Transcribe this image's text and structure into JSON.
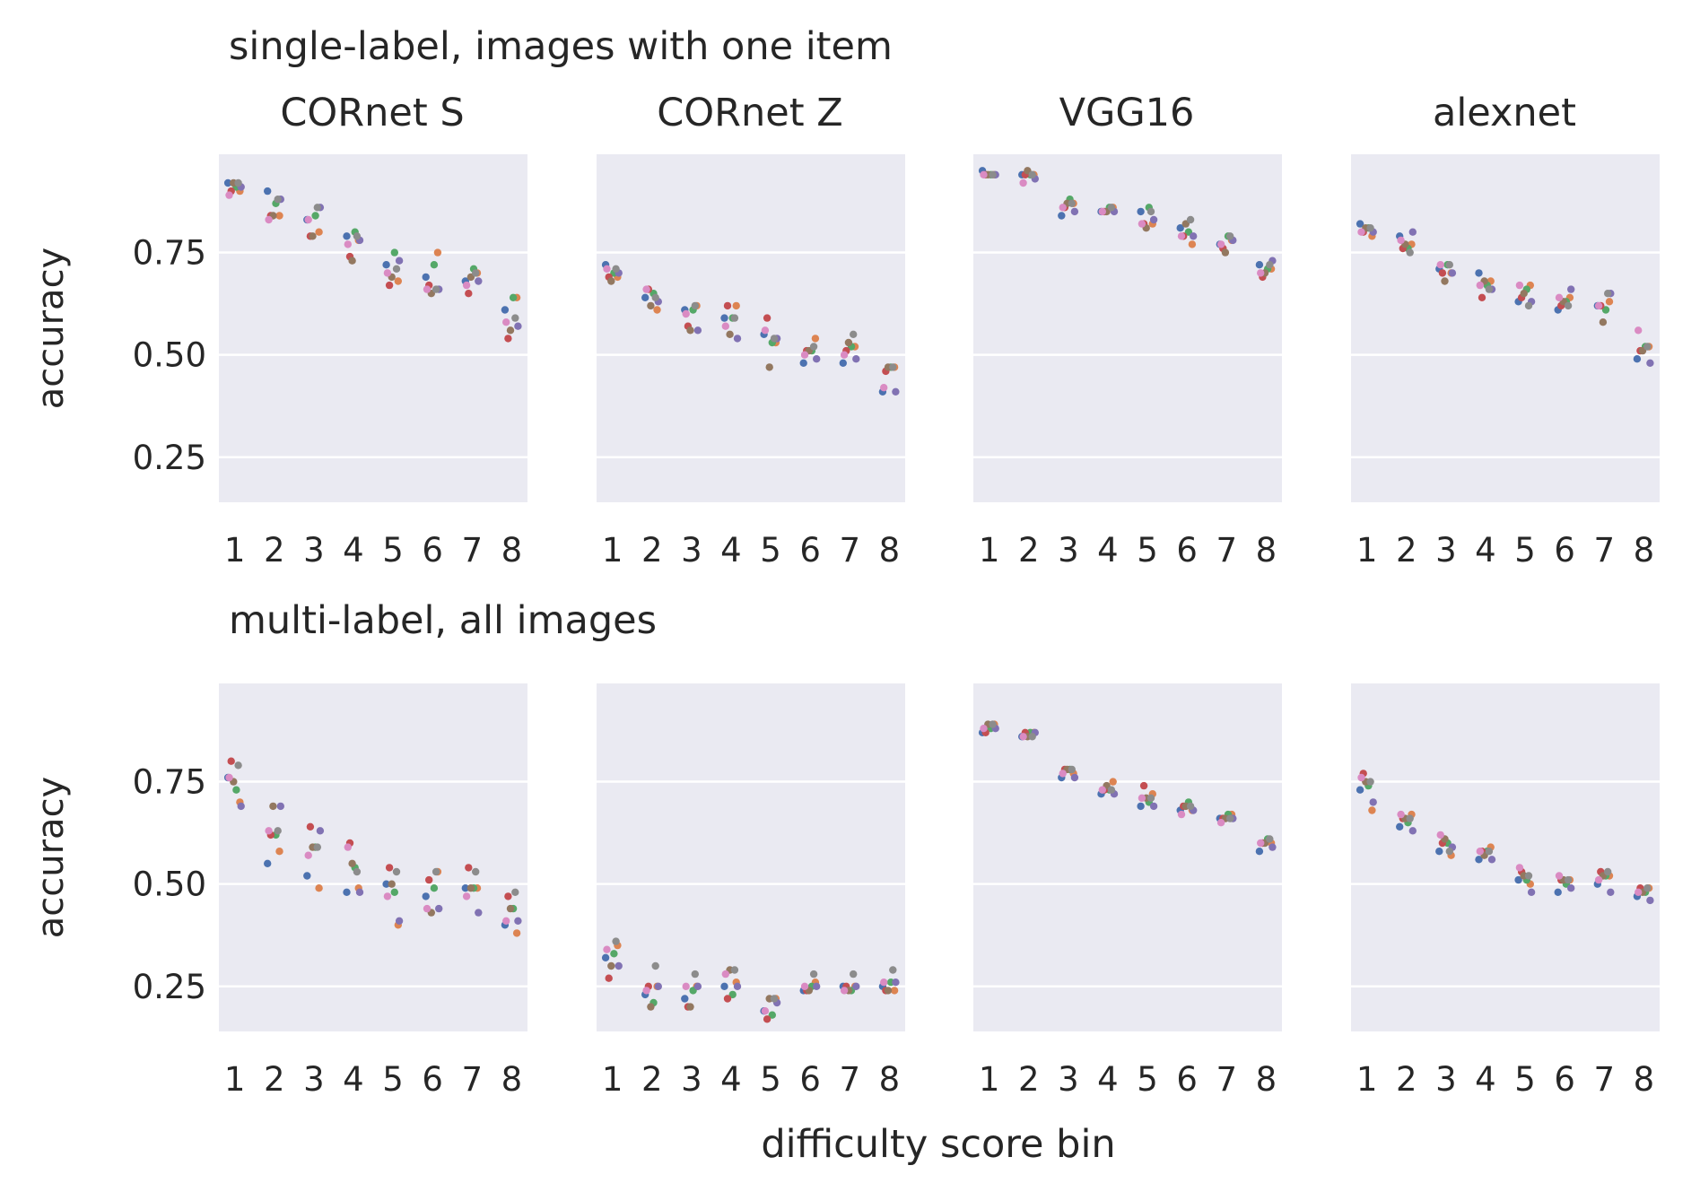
{
  "figure": {
    "xlabel": "difficulty score bin",
    "sections": [
      {
        "title": "single-label, images with one item"
      },
      {
        "title": "multi-label, all images"
      }
    ],
    "column_titles": [
      "CORnet S",
      "CORnet Z",
      "VGG16",
      "alexnet"
    ]
  },
  "chart_data": {
    "type": "scatter",
    "xlabel": "difficulty score bin",
    "ylabel": "accuracy",
    "categories": [
      "1",
      "2",
      "3",
      "4",
      "5",
      "6",
      "7",
      "8"
    ],
    "ylim": [
      0.14,
      0.99
    ],
    "yticks": [
      0.25,
      0.5,
      0.75
    ],
    "ytick_labels": [
      "0.25",
      "0.50",
      "0.75"
    ],
    "grid": true,
    "replicate_colors": [
      "#4c72b0",
      "#dd8452",
      "#55a868",
      "#c44e52",
      "#8172b3",
      "#937860",
      "#da8bc3",
      "#8c8c8c"
    ],
    "panels": [
      {
        "section": "single-label, images with one item",
        "title": "CORnet S",
        "ylabel": "accuracy",
        "points": [
          [
            0.92,
            0.9,
            0.91,
            0.9,
            0.91,
            0.92,
            0.89,
            0.92
          ],
          [
            0.9,
            0.84,
            0.87,
            0.84,
            0.88,
            0.84,
            0.83,
            0.88
          ],
          [
            0.83,
            0.8,
            0.84,
            0.79,
            0.86,
            0.79,
            0.83,
            0.86
          ],
          [
            0.79,
            0.78,
            0.8,
            0.74,
            0.78,
            0.73,
            0.77,
            0.79
          ],
          [
            0.72,
            0.68,
            0.75,
            0.67,
            0.73,
            0.69,
            0.7,
            0.71
          ],
          [
            0.69,
            0.75,
            0.72,
            0.67,
            0.66,
            0.65,
            0.66,
            0.66
          ],
          [
            0.68,
            0.7,
            0.71,
            0.65,
            0.68,
            0.69,
            0.67,
            0.7
          ],
          [
            0.61,
            0.64,
            0.64,
            0.54,
            0.57,
            0.56,
            0.58,
            0.59
          ]
        ]
      },
      {
        "section": "single-label, images with one item",
        "title": "CORnet Z",
        "points": [
          [
            0.72,
            0.69,
            0.7,
            0.69,
            0.7,
            0.68,
            0.71,
            0.71
          ],
          [
            0.64,
            0.61,
            0.65,
            0.66,
            0.63,
            0.62,
            0.66,
            0.64
          ],
          [
            0.61,
            0.62,
            0.61,
            0.57,
            0.56,
            0.56,
            0.6,
            0.62
          ],
          [
            0.59,
            0.62,
            0.59,
            0.62,
            0.54,
            0.55,
            0.57,
            0.59
          ],
          [
            0.55,
            0.53,
            0.53,
            0.59,
            0.54,
            0.47,
            0.56,
            0.54
          ],
          [
            0.48,
            0.54,
            0.51,
            0.51,
            0.49,
            0.51,
            0.5,
            0.52
          ],
          [
            0.48,
            0.52,
            0.52,
            0.51,
            0.49,
            0.53,
            0.5,
            0.55
          ],
          [
            0.41,
            0.47,
            0.47,
            0.46,
            0.41,
            0.47,
            0.42,
            0.47
          ]
        ]
      },
      {
        "section": "single-label, images with one item",
        "title": "VGG16",
        "points": [
          [
            0.95,
            0.94,
            0.94,
            0.94,
            0.94,
            0.94,
            0.94,
            0.94
          ],
          [
            0.94,
            0.94,
            0.94,
            0.94,
            0.93,
            0.95,
            0.92,
            0.94
          ],
          [
            0.84,
            0.87,
            0.88,
            0.86,
            0.85,
            0.87,
            0.86,
            0.87
          ],
          [
            0.85,
            0.86,
            0.86,
            0.85,
            0.85,
            0.85,
            0.85,
            0.86
          ],
          [
            0.85,
            0.82,
            0.86,
            0.82,
            0.83,
            0.81,
            0.82,
            0.85
          ],
          [
            0.81,
            0.77,
            0.8,
            0.79,
            0.79,
            0.82,
            0.79,
            0.83
          ],
          [
            0.77,
            0.78,
            0.79,
            0.76,
            0.78,
            0.75,
            0.77,
            0.79
          ],
          [
            0.72,
            0.71,
            0.71,
            0.69,
            0.73,
            0.7,
            0.7,
            0.72
          ]
        ]
      },
      {
        "section": "single-label, images with one item",
        "title": "alexnet",
        "points": [
          [
            0.82,
            0.79,
            0.81,
            0.8,
            0.8,
            0.81,
            0.8,
            0.81
          ],
          [
            0.79,
            0.77,
            0.76,
            0.76,
            0.8,
            0.77,
            0.78,
            0.75
          ],
          [
            0.71,
            0.7,
            0.72,
            0.7,
            0.7,
            0.68,
            0.72,
            0.72
          ],
          [
            0.7,
            0.68,
            0.67,
            0.64,
            0.66,
            0.68,
            0.67,
            0.66
          ],
          [
            0.63,
            0.67,
            0.66,
            0.64,
            0.63,
            0.65,
            0.67,
            0.62
          ],
          [
            0.61,
            0.64,
            0.63,
            0.62,
            0.66,
            0.63,
            0.64,
            0.62
          ],
          [
            0.62,
            0.63,
            0.61,
            0.62,
            0.65,
            0.58,
            0.62,
            0.65
          ],
          [
            0.49,
            0.52,
            0.52,
            0.51,
            0.48,
            0.51,
            0.56,
            0.52
          ]
        ]
      },
      {
        "section": "multi-label, all images",
        "title": "",
        "ylabel": "accuracy",
        "points": [
          [
            0.76,
            0.7,
            0.73,
            0.8,
            0.69,
            0.75,
            0.76,
            0.79
          ],
          [
            0.55,
            0.58,
            0.62,
            0.62,
            0.69,
            0.69,
            0.63,
            0.63
          ],
          [
            0.52,
            0.49,
            0.59,
            0.64,
            0.63,
            0.59,
            0.57,
            0.59
          ],
          [
            0.48,
            0.49,
            0.54,
            0.6,
            0.48,
            0.55,
            0.59,
            0.53
          ],
          [
            0.5,
            0.4,
            0.48,
            0.54,
            0.41,
            0.5,
            0.47,
            0.53
          ],
          [
            0.47,
            0.53,
            0.49,
            0.51,
            0.44,
            0.43,
            0.44,
            0.53
          ],
          [
            0.49,
            0.49,
            0.49,
            0.54,
            0.43,
            0.49,
            0.47,
            0.53
          ],
          [
            0.4,
            0.38,
            0.44,
            0.47,
            0.41,
            0.44,
            0.41,
            0.48
          ]
        ]
      },
      {
        "section": "multi-label, all images",
        "title": "",
        "points": [
          [
            0.32,
            0.35,
            0.33,
            0.27,
            0.3,
            0.3,
            0.34,
            0.36
          ],
          [
            0.23,
            0.25,
            0.21,
            0.25,
            0.25,
            0.2,
            0.24,
            0.3
          ],
          [
            0.22,
            0.25,
            0.24,
            0.2,
            0.25,
            0.2,
            0.25,
            0.28
          ],
          [
            0.25,
            0.26,
            0.23,
            0.22,
            0.25,
            0.29,
            0.28,
            0.29
          ],
          [
            0.19,
            0.22,
            0.18,
            0.17,
            0.21,
            0.22,
            0.19,
            0.22
          ],
          [
            0.24,
            0.26,
            0.25,
            0.24,
            0.25,
            0.24,
            0.25,
            0.28
          ],
          [
            0.25,
            0.25,
            0.24,
            0.25,
            0.25,
            0.24,
            0.24,
            0.28
          ],
          [
            0.25,
            0.24,
            0.26,
            0.24,
            0.26,
            0.24,
            0.26,
            0.29
          ]
        ]
      },
      {
        "section": "multi-label, all images",
        "title": "",
        "points": [
          [
            0.87,
            0.89,
            0.88,
            0.87,
            0.88,
            0.89,
            0.88,
            0.89
          ],
          [
            0.86,
            0.87,
            0.87,
            0.87,
            0.87,
            0.86,
            0.86,
            0.86
          ],
          [
            0.76,
            0.77,
            0.78,
            0.78,
            0.76,
            0.78,
            0.77,
            0.78
          ],
          [
            0.72,
            0.75,
            0.73,
            0.73,
            0.72,
            0.74,
            0.73,
            0.73
          ],
          [
            0.69,
            0.72,
            0.7,
            0.74,
            0.69,
            0.71,
            0.71,
            0.71
          ],
          [
            0.68,
            0.68,
            0.7,
            0.69,
            0.68,
            0.69,
            0.67,
            0.69
          ],
          [
            0.66,
            0.67,
            0.67,
            0.66,
            0.66,
            0.66,
            0.65,
            0.66
          ],
          [
            0.58,
            0.6,
            0.61,
            0.6,
            0.59,
            0.6,
            0.6,
            0.61
          ]
        ]
      },
      {
        "section": "multi-label, all images",
        "title": "",
        "points": [
          [
            0.73,
            0.68,
            0.74,
            0.77,
            0.7,
            0.75,
            0.76,
            0.75
          ],
          [
            0.64,
            0.67,
            0.65,
            0.66,
            0.63,
            0.66,
            0.67,
            0.66
          ],
          [
            0.58,
            0.57,
            0.6,
            0.6,
            0.59,
            0.61,
            0.62,
            0.58
          ],
          [
            0.56,
            0.59,
            0.58,
            0.58,
            0.56,
            0.57,
            0.58,
            0.58
          ],
          [
            0.51,
            0.5,
            0.51,
            0.53,
            0.48,
            0.52,
            0.54,
            0.52
          ],
          [
            0.48,
            0.51,
            0.5,
            0.51,
            0.49,
            0.51,
            0.52,
            0.51
          ],
          [
            0.5,
            0.52,
            0.52,
            0.53,
            0.48,
            0.52,
            0.51,
            0.53
          ],
          [
            0.47,
            0.49,
            0.48,
            0.49,
            0.46,
            0.48,
            0.48,
            0.49
          ]
        ]
      }
    ]
  }
}
